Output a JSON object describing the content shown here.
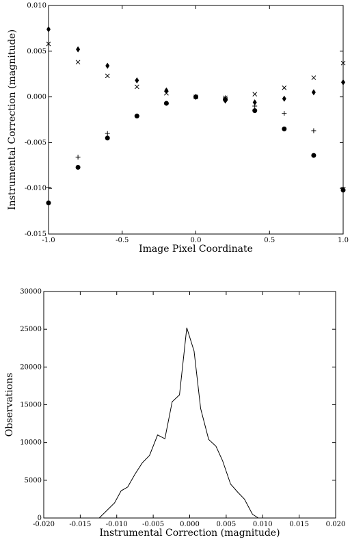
{
  "chart_data": [
    {
      "type": "scatter",
      "xlabel": "Image Pixel Coordinate",
      "ylabel": "Instrumental Correction (magnitude)",
      "x": [
        -1.0,
        -0.8,
        -0.6,
        -0.4,
        -0.2,
        0.0,
        0.2,
        0.4,
        0.6,
        0.8,
        1.0
      ],
      "series": [
        {
          "marker": "circle",
          "color": "#000000",
          "values": [
            -0.0116,
            -0.0077,
            -0.0045,
            -0.0021,
            -0.0007,
            0.0,
            -0.0003,
            -0.0015,
            -0.0035,
            -0.0064,
            -0.0102
          ]
        },
        {
          "marker": "diamond",
          "color": "#000000",
          "values": [
            0.0074,
            0.0052,
            0.0034,
            0.0018,
            0.0007,
            0.0,
            -0.0004,
            -0.0006,
            -0.0002,
            0.0005,
            0.0016
          ]
        },
        {
          "marker": "x",
          "color": "#000000",
          "values": [
            0.0058,
            0.0038,
            0.0023,
            0.0011,
            0.0004,
            0.0,
            -0.0001,
            0.0003,
            0.001,
            0.0021,
            0.0037
          ]
        },
        {
          "marker": "plus",
          "color": "#000000",
          "values": [
            -0.0099,
            -0.0066,
            -0.004,
            -0.0021,
            -0.0007,
            0.0,
            -0.0001,
            -0.001,
            -0.0018,
            -0.0037,
            -0.0099
          ]
        }
      ],
      "xlim": [
        -1.0,
        1.0
      ],
      "xticks": [
        {
          "value": -1.0,
          "label": "-1.0"
        },
        -0.5,
        {
          "value": 0.0,
          "label": "0.0"
        },
        0.5,
        {
          "value": 1.0,
          "label": "1.0"
        }
      ],
      "ylim": [
        -0.015,
        0.01
      ],
      "yticks": [
        -0.015,
        {
          "value": -0.01,
          "label": "-0.010"
        },
        -0.005,
        {
          "value": 0.0,
          "label": "0.000"
        },
        0.005,
        {
          "value": 0.01,
          "label": "0.010"
        }
      ]
    },
    {
      "type": "line",
      "xlabel": "Instrumental Correction (magnitude)",
      "ylabel": "Observations",
      "x": [
        -0.0124,
        -0.0103,
        -0.0094,
        -0.0085,
        -0.0075,
        -0.0065,
        -0.0055,
        -0.0044,
        -0.0034,
        -0.0024,
        -0.0014,
        -0.0004,
        0.0006,
        0.0015,
        0.0026,
        0.0036,
        0.0045,
        0.0056,
        0.0066,
        0.0075,
        0.0086,
        0.0094
      ],
      "series": [
        {
          "color": "#000000",
          "values": [
            0,
            2000,
            3600,
            4100,
            5800,
            7300,
            8300,
            11000,
            10500,
            15400,
            16300,
            25200,
            22100,
            14500,
            10400,
            9500,
            7600,
            4500,
            3400,
            2500,
            500,
            0
          ]
        }
      ],
      "xlim": [
        -0.02,
        0.02
      ],
      "xticks": [
        {
          "value": -0.02,
          "label": "-0.020"
        },
        -0.015,
        {
          "value": -0.01,
          "label": "-0.010"
        },
        -0.005,
        {
          "value": 0.0,
          "label": "0.000"
        },
        0.005,
        {
          "value": 0.01,
          "label": "0.010"
        },
        0.015,
        {
          "value": 0.02,
          "label": "0.020"
        }
      ],
      "ylim": [
        0,
        30000
      ],
      "yticks": [
        0,
        5000,
        10000,
        15000,
        20000,
        25000,
        30000
      ]
    }
  ]
}
